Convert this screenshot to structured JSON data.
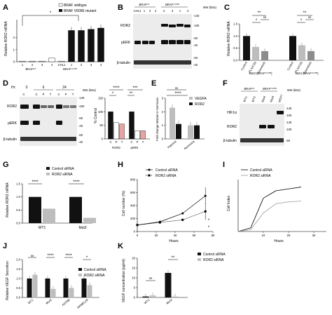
{
  "panels": {
    "A": {
      "letter": "A",
      "ylabel": "Relative ROR2 mRNA",
      "legend": [
        "BRAF wildtype",
        "BRAF V600E mutant"
      ],
      "significance": "*",
      "group_wt": "BRAFʷᵀ",
      "group_mut": "BRAFⱽ⁶⁰⁰ᴱ",
      "yticks": [
        "0",
        "1",
        "2"
      ],
      "xticks": [
        "1",
        "2",
        "3",
        "4",
        "CHL1",
        "1",
        "2",
        "3",
        "4"
      ]
    },
    "B": {
      "letter": "B",
      "header_wt": "BRAFʷᵀ",
      "header_mut": "BRAFⱽ⁶⁰⁰ᴱ",
      "lanes": [
        "CHL1",
        "1",
        "2",
        "4",
        "2",
        "3",
        "1",
        "4"
      ],
      "mw": "MW (kDa)",
      "rows": [
        "ROR2",
        "pERK",
        "β-tubulin"
      ],
      "mw_marks": [
        "-140",
        "-100",
        "-60",
        "-40",
        "-60",
        "-40"
      ]
    },
    "C": {
      "letter": "C",
      "ylabel": "Relative ROR2 mRNA",
      "yticks": [
        "0.0",
        "0.5",
        "1.0",
        "1.5"
      ],
      "xticks": [
        "Control",
        "PLX4720",
        "Trametinib",
        "Control",
        "PLX4720",
        "Trametinib"
      ],
      "groups": [
        "Mut3 (BRAFⱽ⁶⁰⁰ᴱ)",
        "Mut4 (BRAFⱽ⁶⁰⁰ᴱ)"
      ],
      "significance": [
        "**",
        "*",
        "ns",
        "**",
        "*",
        "ns"
      ]
    },
    "D": {
      "letter": "D",
      "hr_label": "Hr:",
      "time_points": [
        "0",
        "6",
        "24"
      ],
      "lanes": [
        "C",
        "C",
        "P",
        "T",
        "C",
        "P",
        "T"
      ],
      "mw": "MW (kDa)",
      "rows": [
        "ROR2",
        "pERK",
        "β-tubulin"
      ],
      "mw_marks": [
        "-140",
        "-100",
        "-60",
        "-40",
        "-60",
        "-40"
      ],
      "bar_ylabel": "% Control",
      "bar_yticks": [
        "0",
        "50",
        "100",
        "150"
      ],
      "bar_xticks": [
        "C",
        "P",
        "T",
        "C",
        "P",
        "T"
      ],
      "bar_groups": [
        "ROR2",
        "pERK"
      ],
      "significance": [
        "****",
        "*",
        "***",
        "**"
      ]
    },
    "E": {
      "letter": "E",
      "ylabel": "Fold change relative to Normoxia",
      "yticks": [
        "0",
        "1",
        "2",
        "3"
      ],
      "legend": [
        "VEGFA",
        "ROR2"
      ],
      "xticks": [
        "Hypoxia",
        "Normoxia"
      ],
      "significance": [
        "ns",
        "****"
      ]
    },
    "F": {
      "letter": "F",
      "header_wt": "BRAFʷᵀ",
      "header_mut": "BRAFⱽ⁶⁰⁰ᴱ",
      "lanes": [
        "WT1",
        "WT2",
        "Mut4",
        "Mut3",
        "MCF7"
      ],
      "mw": "MW (kDa)",
      "rows": [
        "HIF1α",
        "ROR2",
        "β-tubulin"
      ],
      "mw_marks": [
        "-140",
        "-100",
        "-140",
        "-100",
        "-60"
      ]
    },
    "G": {
      "letter": "G",
      "ylabel": "Relative ROR2 mRNA",
      "yticks": [
        "0.0",
        "0.5",
        "1.0",
        "1.5"
      ],
      "legend": [
        "Control siRNA",
        "ROR2 siRNA"
      ],
      "xticks": [
        "WT1",
        "Mut3"
      ],
      "significance": [
        "****",
        "****"
      ]
    },
    "H": {
      "letter": "H",
      "ylabel": "Cell number (%)",
      "xlabel": "Hours",
      "yticks": [
        "0",
        "200",
        "400",
        "600",
        "800"
      ],
      "xticks": [
        "0",
        "20",
        "40",
        "60",
        "80"
      ],
      "legend": [
        "Control siRNA",
        "ROR2 siRNA"
      ],
      "significance": [
        "*",
        "*"
      ]
    },
    "I": {
      "letter": "I",
      "ylabel": "Cell Index",
      "xlabel": "Hours",
      "xticks": [
        "10",
        "20",
        "30"
      ],
      "legend": [
        "Control siRNA",
        "ROR2 siRNA"
      ]
    },
    "J": {
      "letter": "J",
      "ylabel": "Relative VEGF Secretion",
      "yticks": [
        "0.0",
        "0.5",
        "1.0",
        "1.5",
        "2.0"
      ],
      "legend": [
        "Control siRNA",
        "ROR2 siRNA"
      ],
      "xticks": [
        "WT1",
        "Mut3",
        "A375M",
        "SKMEL28"
      ],
      "significance": [
        "ns",
        "****",
        "****",
        "*"
      ]
    },
    "K": {
      "letter": "K",
      "ylabel": "VEGF concentration (pg/ml)",
      "yticks": [
        "0",
        "5",
        "10",
        "15",
        "20"
      ],
      "legend": [
        "Control siRNA",
        "ROR2 siRNA"
      ],
      "xticks": [
        "WT1",
        "Mut3"
      ],
      "significance": [
        "ns",
        "**"
      ]
    }
  },
  "colors": {
    "black": "#111111",
    "grey": "#bdbdbd",
    "light": "#d9d9d9",
    "red_bar": "#e8a3a3",
    "blot_bg": "#e9e9e9"
  },
  "chart_data": [
    {
      "panel": "A",
      "type": "bar",
      "categories": [
        "1",
        "2",
        "3",
        "4",
        "CHL1",
        "1",
        "2",
        "3",
        "4"
      ],
      "values": [
        0.05,
        0.05,
        0.05,
        0.3,
        0.05,
        2.6,
        2.6,
        2.7,
        2.8
      ],
      "ylim": [
        0,
        3.5
      ],
      "ylabel": "Relative ROR2 mRNA"
    },
    {
      "panel": "C",
      "type": "bar",
      "categories": [
        "Control",
        "PLX4720",
        "Trametinib",
        "Control",
        "PLX4720",
        "Trametinib"
      ],
      "values": [
        1.0,
        0.55,
        0.38,
        1.0,
        0.62,
        0.38
      ],
      "ylim": [
        0,
        1.5
      ],
      "ylabel": "Relative ROR2 mRNA"
    },
    {
      "panel": "D",
      "type": "bar",
      "categories": [
        "C",
        "P",
        "T",
        "C",
        "P",
        "T"
      ],
      "values": [
        100,
        60,
        55,
        100,
        30,
        30
      ],
      "ylim": [
        0,
        150
      ],
      "ylabel": "% Control"
    },
    {
      "panel": "E",
      "type": "bar",
      "categories": [
        "Hypoxia",
        "Normoxia"
      ],
      "series": [
        {
          "name": "VEGFA",
          "values": [
            2.3,
            1.0
          ]
        },
        {
          "name": "ROR2",
          "values": [
            1.1,
            1.0
          ]
        }
      ],
      "ylim": [
        0,
        3
      ],
      "ylabel": "Fold change relative to Normoxia"
    },
    {
      "panel": "G",
      "type": "bar",
      "categories": [
        "WT1",
        "Mut3"
      ],
      "series": [
        {
          "name": "Control siRNA",
          "values": [
            1.0,
            1.0
          ]
        },
        {
          "name": "ROR2 siRNA",
          "values": [
            0.55,
            0.2
          ]
        }
      ],
      "ylim": [
        0,
        1.5
      ],
      "ylabel": "Relative ROR2 mRNA"
    },
    {
      "panel": "H",
      "type": "line",
      "x": [
        0,
        24,
        48,
        72
      ],
      "series": [
        {
          "name": "Control siRNA",
          "values": [
            100,
            150,
            280,
            550
          ]
        },
        {
          "name": "ROR2 siRNA",
          "values": [
            100,
            140,
            180,
            310
          ]
        }
      ],
      "xlim": [
        0,
        80
      ],
      "ylim": [
        0,
        800
      ],
      "xlabel": "Hours",
      "ylabel": "Cell number (%)"
    },
    {
      "panel": "I",
      "type": "line",
      "x": [
        0,
        5,
        10,
        15,
        20,
        25
      ],
      "series": [
        {
          "name": "Control siRNA",
          "values": [
            0,
            0.1,
            0.9,
            1.1,
            1.15,
            1.2
          ]
        },
        {
          "name": "ROR2 siRNA",
          "values": [
            0,
            0.05,
            0.5,
            0.75,
            0.8,
            0.82
          ]
        }
      ],
      "xlabel": "Hours",
      "ylabel": "Cell Index"
    },
    {
      "panel": "J",
      "type": "bar",
      "categories": [
        "WT1",
        "Mut3",
        "A375M",
        "SKMEL28"
      ],
      "series": [
        {
          "name": "Control siRNA",
          "values": [
            1.0,
            1.0,
            1.0,
            1.0
          ]
        },
        {
          "name": "ROR2 siRNA",
          "values": [
            1.2,
            0.45,
            0.5,
            0.65
          ]
        }
      ],
      "ylim": [
        0,
        2
      ],
      "ylabel": "Relative VEGF Secretion"
    },
    {
      "panel": "K",
      "type": "bar",
      "categories": [
        "WT1",
        "Mut3"
      ],
      "series": [
        {
          "name": "Control siRNA",
          "values": [
            0.5,
            12.5
          ]
        },
        {
          "name": "ROR2 siRNA",
          "values": [
            1.0,
            0.5
          ]
        }
      ],
      "ylim": [
        0,
        20
      ],
      "ylabel": "VEGF concentration (pg/ml)"
    }
  ]
}
